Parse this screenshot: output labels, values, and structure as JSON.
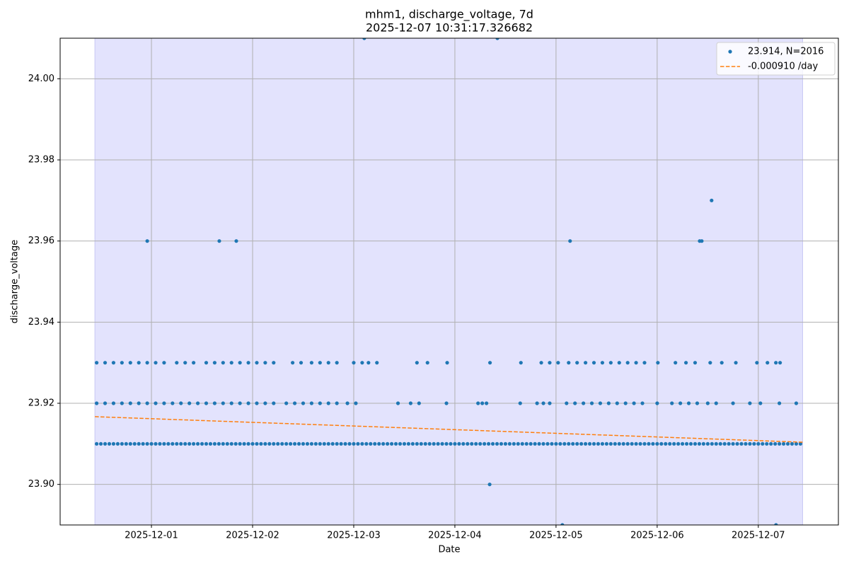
{
  "chart_data": {
    "type": "scatter",
    "title": "mhm1, discharge_voltage, 7d",
    "subtitle": "2025-12-07 10:31:17.326682",
    "x_label": "Date",
    "y_label": "discharge_voltage",
    "xlim": [
      "2025-11-30T02:20",
      "2025-12-07T19:00"
    ],
    "xticks": [
      "2025-12-01",
      "2025-12-02",
      "2025-12-03",
      "2025-12-04",
      "2025-12-05",
      "2025-12-06",
      "2025-12-07"
    ],
    "ylim": [
      23.89,
      24.01
    ],
    "yticks": [
      {
        "value": 23.9,
        "label": "23.90"
      },
      23.92,
      23.94,
      23.96,
      23.98,
      {
        "value": 24,
        "label": "24.00"
      }
    ],
    "grid": true,
    "legend": "upper right",
    "span": [
      "2025-11-30T10:35",
      "2025-12-07T10:31"
    ],
    "span_color": "#e3e3fd",
    "series": [
      {
        "name": "23.914, N=2016",
        "type": "scatter",
        "color": "#1f77b4",
        "x": [
          "2025-11-30T11:00",
          "2025-11-30T12:00",
          "2025-11-30T13:00",
          "2025-11-30T14:00",
          "2025-11-30T15:00",
          "2025-11-30T16:00",
          "2025-11-30T17:00",
          "2025-11-30T18:00",
          "2025-11-30T19:00",
          "2025-11-30T20:00",
          "2025-11-30T21:00",
          "2025-11-30T22:00",
          "2025-11-30T23:00",
          "2025-12-01T00:00",
          "2025-12-01T01:00",
          "2025-12-01T02:00",
          "2025-12-01T03:00",
          "2025-12-01T04:00",
          "2025-12-01T05:00",
          "2025-12-01T06:00",
          "2025-12-01T07:00",
          "2025-12-01T08:00",
          "2025-12-01T09:00",
          "2025-12-01T10:00",
          "2025-12-01T11:00",
          "2025-12-01T12:00",
          "2025-12-01T13:00",
          "2025-12-01T14:00",
          "2025-12-01T15:00",
          "2025-12-01T16:00",
          "2025-12-01T17:00",
          "2025-12-01T18:00",
          "2025-12-01T19:00",
          "2025-12-01T20:00",
          "2025-12-01T21:00",
          "2025-12-01T22:00",
          "2025-12-01T23:00",
          "2025-12-02T00:00",
          "2025-12-02T01:00",
          "2025-12-02T02:00",
          "2025-12-02T03:00",
          "2025-12-02T04:00",
          "2025-12-02T05:00",
          "2025-12-02T06:00",
          "2025-12-02T07:00",
          "2025-12-02T08:00",
          "2025-12-02T09:00",
          "2025-12-02T10:00",
          "2025-12-02T11:00",
          "2025-12-02T12:00",
          "2025-12-02T13:00",
          "2025-12-02T14:00",
          "2025-12-02T15:00",
          "2025-12-02T16:00",
          "2025-12-02T17:00",
          "2025-12-02T18:00",
          "2025-12-02T19:00",
          "2025-12-02T20:00",
          "2025-12-02T21:00",
          "2025-12-02T22:00",
          "2025-12-02T23:00",
          "2025-12-03T00:00",
          "2025-12-03T01:00",
          "2025-12-03T02:00",
          "2025-12-03T03:00",
          "2025-12-03T04:00",
          "2025-12-03T05:00",
          "2025-12-03T06:00",
          "2025-12-03T07:00",
          "2025-12-03T08:00",
          "2025-12-03T09:00",
          "2025-12-03T10:00",
          "2025-12-03T11:00",
          "2025-12-03T12:00",
          "2025-12-03T13:00",
          "2025-12-03T14:00",
          "2025-12-03T15:00",
          "2025-12-03T16:00",
          "2025-12-03T17:00",
          "2025-12-03T18:00",
          "2025-12-03T19:00",
          "2025-12-03T20:00",
          "2025-12-03T21:00",
          "2025-12-03T22:00",
          "2025-12-03T23:00",
          "2025-12-04T00:00",
          "2025-12-04T01:00",
          "2025-12-04T02:00",
          "2025-12-04T03:00",
          "2025-12-04T04:00",
          "2025-12-04T05:00",
          "2025-12-04T06:00",
          "2025-12-04T07:00",
          "2025-12-04T08:00",
          "2025-12-04T09:00",
          "2025-12-04T10:00",
          "2025-12-04T11:00",
          "2025-12-04T12:00",
          "2025-12-04T13:00",
          "2025-12-04T14:00",
          "2025-12-04T15:00",
          "2025-12-04T16:00",
          "2025-12-04T17:00",
          "2025-12-04T18:00",
          "2025-12-04T19:00",
          "2025-12-04T20:00",
          "2025-12-04T21:00",
          "2025-12-04T22:00",
          "2025-12-04T23:00",
          "2025-12-05T00:00",
          "2025-12-05T01:00",
          "2025-12-05T02:00",
          "2025-12-05T03:00",
          "2025-12-05T04:00",
          "2025-12-05T05:00",
          "2025-12-05T06:00",
          "2025-12-05T07:00",
          "2025-12-05T08:00",
          "2025-12-05T09:00",
          "2025-12-05T10:00",
          "2025-12-05T11:00",
          "2025-12-05T12:00",
          "2025-12-05T13:00",
          "2025-12-05T14:00",
          "2025-12-05T15:00",
          "2025-12-05T16:00",
          "2025-12-05T17:00",
          "2025-12-05T18:00",
          "2025-12-05T19:00",
          "2025-12-05T20:00",
          "2025-12-05T21:00",
          "2025-12-05T22:00",
          "2025-12-05T23:00",
          "2025-12-06T00:00",
          "2025-12-06T01:00",
          "2025-12-06T02:00",
          "2025-12-06T03:00",
          "2025-12-06T04:00",
          "2025-12-06T05:00",
          "2025-12-06T06:00",
          "2025-12-06T07:00",
          "2025-12-06T08:00",
          "2025-12-06T09:00",
          "2025-12-06T10:00",
          "2025-12-06T11:00",
          "2025-12-06T12:00",
          "2025-12-06T13:00",
          "2025-12-06T14:00",
          "2025-12-06T15:00",
          "2025-12-06T16:00",
          "2025-12-06T17:00",
          "2025-12-06T18:00",
          "2025-12-06T19:00",
          "2025-12-06T20:00",
          "2025-12-06T21:00",
          "2025-12-06T22:00",
          "2025-12-06T23:00",
          "2025-12-07T00:00",
          "2025-12-07T01:00",
          "2025-12-07T02:00",
          "2025-12-07T03:00",
          "2025-12-07T04:00",
          "2025-12-07T05:00",
          "2025-12-07T06:00",
          "2025-12-07T07:00",
          "2025-12-07T08:00",
          "2025-12-07T09:00",
          "2025-12-07T10:00",
          "2025-11-30T11:00",
          "2025-11-30T13:00",
          "2025-11-30T15:00",
          "2025-11-30T17:00",
          "2025-11-30T19:00",
          "2025-11-30T21:00",
          "2025-11-30T23:00",
          "2025-12-01T01:00",
          "2025-12-01T03:00",
          "2025-12-01T05:00",
          "2025-12-01T07:00",
          "2025-12-01T09:00",
          "2025-12-01T11:00",
          "2025-12-01T13:00",
          "2025-12-01T15:00",
          "2025-12-01T17:00",
          "2025-12-01T19:00",
          "2025-12-01T21:00",
          "2025-12-01T23:00",
          "2025-12-02T01:00",
          "2025-12-02T03:00",
          "2025-12-02T05:00",
          "2025-12-02T08:00",
          "2025-12-02T10:00",
          "2025-12-02T12:00",
          "2025-12-02T14:00",
          "2025-12-02T16:00",
          "2025-12-02T18:00",
          "2025-12-02T20:00",
          "2025-12-02T22:30",
          "2025-12-03T00:30",
          "2025-12-03T10:30",
          "2025-12-03T13:30",
          "2025-12-03T15:30",
          "2025-12-03T22:00",
          "2025-12-04T05:30",
          "2025-12-04T06:30",
          "2025-12-04T07:30",
          "2025-12-04T15:30",
          "2025-12-04T19:30",
          "2025-12-04T21:00",
          "2025-12-04T22:30",
          "2025-12-05T02:30",
          "2025-12-05T04:30",
          "2025-12-05T06:30",
          "2025-12-05T08:30",
          "2025-12-05T10:30",
          "2025-12-05T12:30",
          "2025-12-05T14:30",
          "2025-12-05T16:30",
          "2025-12-05T18:30",
          "2025-12-05T20:30",
          "2025-12-06T00:00",
          "2025-12-06T03:30",
          "2025-12-06T05:30",
          "2025-12-06T07:30",
          "2025-12-06T09:30",
          "2025-12-06T12:00",
          "2025-12-06T14:00",
          "2025-12-06T18:00",
          "2025-12-06T22:00",
          "2025-12-07T00:30",
          "2025-12-07T05:00",
          "2025-12-07T09:00",
          "2025-11-30T11:00",
          "2025-11-30T13:00",
          "2025-11-30T15:00",
          "2025-11-30T17:00",
          "2025-11-30T19:00",
          "2025-11-30T21:00",
          "2025-11-30T23:00",
          "2025-12-01T01:00",
          "2025-12-01T03:00",
          "2025-12-01T06:00",
          "2025-12-01T08:00",
          "2025-12-01T10:00",
          "2025-12-01T13:00",
          "2025-12-01T15:00",
          "2025-12-01T17:00",
          "2025-12-01T19:00",
          "2025-12-01T21:00",
          "2025-12-01T23:00",
          "2025-12-02T01:00",
          "2025-12-02T03:00",
          "2025-12-02T05:00",
          "2025-12-02T09:30",
          "2025-12-02T11:30",
          "2025-12-02T14:00",
          "2025-12-02T16:00",
          "2025-12-02T18:00",
          "2025-12-02T20:00",
          "2025-12-03T00:00",
          "2025-12-03T02:00",
          "2025-12-03T03:30",
          "2025-12-03T05:30",
          "2025-12-03T15:00",
          "2025-12-03T17:30",
          "2025-12-03T22:10",
          "2025-12-04T08:20",
          "2025-12-04T15:40",
          "2025-12-04T20:30",
          "2025-12-04T22:30",
          "2025-12-05T00:30",
          "2025-12-05T03:00",
          "2025-12-05T05:00",
          "2025-12-05T07:00",
          "2025-12-05T09:00",
          "2025-12-05T11:00",
          "2025-12-05T13:00",
          "2025-12-05T15:00",
          "2025-12-05T17:00",
          "2025-12-05T19:00",
          "2025-12-05T21:00",
          "2025-12-06T00:10",
          "2025-12-06T04:20",
          "2025-12-06T06:50",
          "2025-12-06T09:00",
          "2025-12-06T12:35",
          "2025-12-06T15:20",
          "2025-12-06T18:40",
          "2025-12-06T23:40",
          "2025-12-07T02:10",
          "2025-12-07T04:10",
          "2025-12-07T05:10",
          "2025-11-30T23:00",
          "2025-12-01T16:06",
          "2025-12-01T20:08",
          "2025-12-03T02:30",
          "2025-12-04T10:05",
          "2025-12-04T08:15",
          "2025-12-05T01:30",
          "2025-12-05T03:20",
          "2025-12-06T10:05",
          "2025-12-06T10:35",
          "2025-12-06T12:55",
          "2025-12-07T04:12"
        ],
        "values": [
          23.91,
          23.91,
          23.91,
          23.91,
          23.91,
          23.91,
          23.91,
          23.91,
          23.91,
          23.91,
          23.91,
          23.91,
          23.91,
          23.91,
          23.91,
          23.91,
          23.91,
          23.91,
          23.91,
          23.91,
          23.91,
          23.91,
          23.91,
          23.91,
          23.91,
          23.91,
          23.91,
          23.91,
          23.91,
          23.91,
          23.91,
          23.91,
          23.91,
          23.91,
          23.91,
          23.91,
          23.91,
          23.91,
          23.91,
          23.91,
          23.91,
          23.91,
          23.91,
          23.91,
          23.91,
          23.91,
          23.91,
          23.91,
          23.91,
          23.91,
          23.91,
          23.91,
          23.91,
          23.91,
          23.91,
          23.91,
          23.91,
          23.91,
          23.91,
          23.91,
          23.91,
          23.91,
          23.91,
          23.91,
          23.91,
          23.91,
          23.91,
          23.91,
          23.91,
          23.91,
          23.91,
          23.91,
          23.91,
          23.91,
          23.91,
          23.91,
          23.91,
          23.91,
          23.91,
          23.91,
          23.91,
          23.91,
          23.91,
          23.91,
          23.91,
          23.91,
          23.91,
          23.91,
          23.91,
          23.91,
          23.91,
          23.91,
          23.91,
          23.91,
          23.91,
          23.91,
          23.91,
          23.91,
          23.91,
          23.91,
          23.91,
          23.91,
          23.91,
          23.91,
          23.91,
          23.91,
          23.91,
          23.91,
          23.91,
          23.91,
          23.91,
          23.91,
          23.91,
          23.91,
          23.91,
          23.91,
          23.91,
          23.91,
          23.91,
          23.91,
          23.91,
          23.91,
          23.91,
          23.91,
          23.91,
          23.91,
          23.91,
          23.91,
          23.91,
          23.91,
          23.91,
          23.91,
          23.91,
          23.91,
          23.91,
          23.91,
          23.91,
          23.91,
          23.91,
          23.91,
          23.91,
          23.91,
          23.91,
          23.91,
          23.91,
          23.91,
          23.91,
          23.91,
          23.91,
          23.91,
          23.91,
          23.91,
          23.91,
          23.91,
          23.91,
          23.91,
          23.91,
          23.91,
          23.91,
          23.91,
          23.91,
          23.91,
          23.91,
          23.91,
          23.91,
          23.91,
          23.91,
          23.91,
          23.92,
          23.92,
          23.92,
          23.92,
          23.92,
          23.92,
          23.92,
          23.92,
          23.92,
          23.92,
          23.92,
          23.92,
          23.92,
          23.92,
          23.92,
          23.92,
          23.92,
          23.92,
          23.92,
          23.92,
          23.92,
          23.92,
          23.92,
          23.92,
          23.92,
          23.92,
          23.92,
          23.92,
          23.92,
          23.92,
          23.92,
          23.92,
          23.92,
          23.92,
          23.92,
          23.92,
          23.92,
          23.92,
          23.92,
          23.92,
          23.92,
          23.92,
          23.92,
          23.92,
          23.92,
          23.92,
          23.92,
          23.92,
          23.92,
          23.92,
          23.92,
          23.92,
          23.92,
          23.92,
          23.92,
          23.92,
          23.92,
          23.92,
          23.92,
          23.92,
          23.92,
          23.92,
          23.92,
          23.92,
          23.93,
          23.93,
          23.93,
          23.93,
          23.93,
          23.93,
          23.93,
          23.93,
          23.93,
          23.93,
          23.93,
          23.93,
          23.93,
          23.93,
          23.93,
          23.93,
          23.93,
          23.93,
          23.93,
          23.93,
          23.93,
          23.93,
          23.93,
          23.93,
          23.93,
          23.93,
          23.93,
          23.93,
          23.93,
          23.93,
          23.93,
          23.93,
          23.93,
          23.93,
          23.93,
          23.93,
          23.93,
          23.93,
          23.93,
          23.93,
          23.93,
          23.93,
          23.93,
          23.93,
          23.93,
          23.93,
          23.93,
          23.93,
          23.93,
          23.93,
          23.93,
          23.93,
          23.93,
          23.93,
          23.93,
          23.93,
          23.93,
          23.93,
          23.93,
          23.93,
          23.96,
          23.96,
          23.96,
          24.01,
          24.01,
          23.9,
          23.89,
          23.96,
          23.96,
          23.96,
          23.97,
          23.89
        ]
      },
      {
        "name": "-0.000910 /day",
        "type": "line",
        "style": "dashed",
        "color": "#ff7f0e",
        "x": [
          "2025-11-30T10:35",
          "2025-12-07T10:31"
        ],
        "values": [
          23.9167,
          23.9104
        ]
      }
    ]
  }
}
